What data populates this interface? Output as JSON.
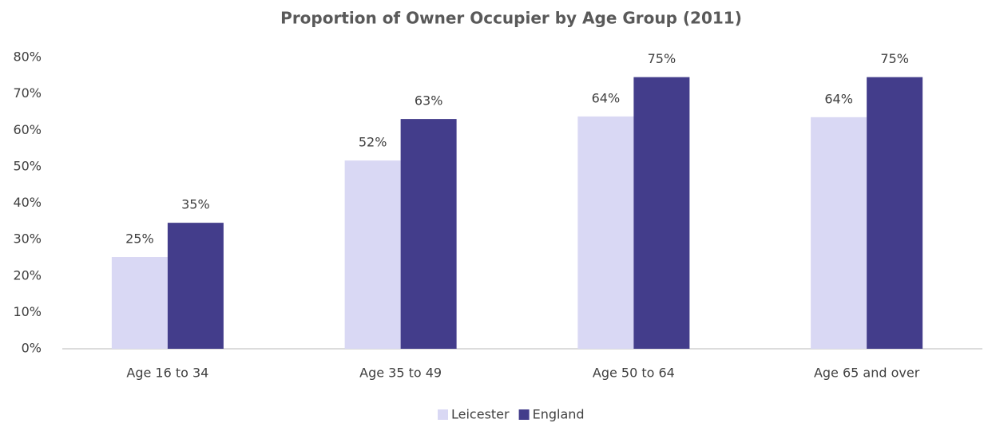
{
  "chart_data": {
    "type": "bar",
    "title": "Proportion of Owner Occupier by Age Group (2011)",
    "categories": [
      "Age 16 to 34",
      "Age 35 to 49",
      "Age 50 to 64",
      "Age 65 and over"
    ],
    "series": [
      {
        "name": "Leicester",
        "color": "#d9d8f4",
        "values": [
          25.2,
          51.7,
          63.8,
          63.6
        ],
        "value_labels": [
          "25%",
          "52%",
          "64%",
          "64%"
        ]
      },
      {
        "name": "England",
        "color": "#433d8b",
        "values": [
          34.6,
          63.1,
          74.6,
          74.6
        ],
        "value_labels": [
          "35%",
          "63%",
          "75%",
          "75%"
        ]
      }
    ],
    "ylim": [
      0,
      80
    ],
    "yticks": [
      {
        "value": 0,
        "label": "0%"
      },
      {
        "value": 10,
        "label": "10%"
      },
      {
        "value": 20,
        "label": "20%"
      },
      {
        "value": 30,
        "label": "30%"
      },
      {
        "value": 40,
        "label": "40%"
      },
      {
        "value": 50,
        "label": "50%"
      },
      {
        "value": 60,
        "label": "60%"
      },
      {
        "value": 70,
        "label": "70%"
      },
      {
        "value": 80,
        "label": "80%"
      }
    ],
    "grid": false,
    "legend": "bottom"
  }
}
